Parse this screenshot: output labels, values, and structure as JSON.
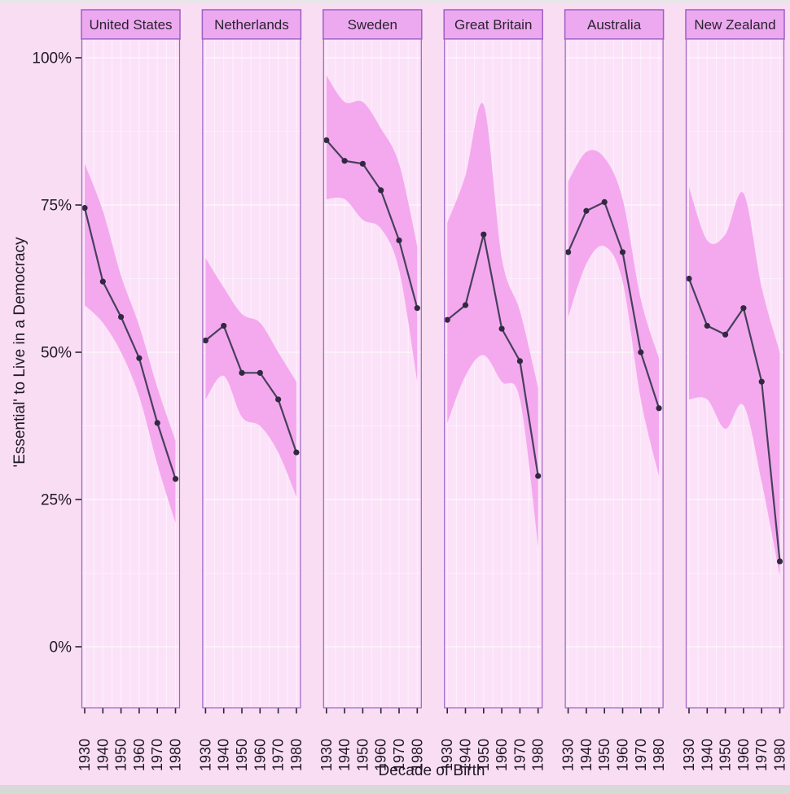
{
  "page": {
    "background_color": "#f9ddf3",
    "top_edge_color": "#e8e6e8",
    "bottom_edge_color": "#d6d9d5"
  },
  "chart_data": {
    "type": "line",
    "layout": "faceted-small-multiples-with-confidence-bands",
    "title": "",
    "xlabel": "Decade of Birth",
    "ylabel": "'Essential' to Live in a Democracy",
    "x": [
      1930,
      1940,
      1950,
      1960,
      1970,
      1980
    ],
    "x_tick_labels": [
      "1930",
      "1940",
      "1950",
      "1960",
      "1970",
      "1980"
    ],
    "y_ticks": [
      0,
      25,
      50,
      75,
      100
    ],
    "y_tick_labels": [
      "0%",
      "25%",
      "50%",
      "75%",
      "100%"
    ],
    "ylim": [
      -10.5,
      103.5
    ],
    "grid": {
      "vertical_step_years": 5,
      "horizontal_major_step_pct": 25,
      "horizontal_minor_step_pct": 12.5
    },
    "legend": "none",
    "facets": [
      {
        "name": "United States",
        "values": [
          74.5,
          62,
          56,
          49,
          38,
          28.5
        ],
        "band_upper": [
          82,
          74,
          63,
          54.5,
          44,
          35
        ],
        "band_lower": [
          58,
          55,
          50,
          42.5,
          31,
          21
        ]
      },
      {
        "name": "Netherlands",
        "values": [
          52,
          54.5,
          46.5,
          46.5,
          42,
          33
        ],
        "band_upper": [
          66,
          61,
          56.5,
          55,
          50,
          45
        ],
        "band_lower": [
          42,
          46,
          39,
          37.5,
          33,
          25.5
        ]
      },
      {
        "name": "Sweden",
        "values": [
          86,
          82.5,
          82,
          77.5,
          69,
          57.5
        ],
        "band_upper": [
          97,
          92.5,
          92.5,
          88,
          82,
          68
        ],
        "band_lower": [
          76,
          76,
          72.5,
          71,
          64,
          45
        ]
      },
      {
        "name": "Great Britain",
        "values": [
          55.5,
          58,
          70,
          54,
          48.5,
          29
        ],
        "band_upper": [
          72,
          80,
          92,
          66,
          57,
          44
        ],
        "band_lower": [
          38,
          46,
          49.5,
          45,
          42,
          17
        ]
      },
      {
        "name": "Australia",
        "values": [
          67,
          74,
          75.5,
          67,
          50,
          40.5
        ],
        "band_upper": [
          79,
          84,
          83,
          76,
          59,
          49
        ],
        "band_lower": [
          56,
          65,
          68,
          62,
          42,
          29
        ]
      },
      {
        "name": "New Zealand",
        "values": [
          62.5,
          54.5,
          53,
          57.5,
          45,
          14.5
        ],
        "band_upper": [
          78,
          69,
          70,
          77,
          61,
          50
        ],
        "band_lower": [
          42,
          42,
          37,
          41,
          28,
          12
        ]
      }
    ],
    "colors": {
      "panel_background": "#fbe2f8",
      "confidence_band": "#f4a9ee",
      "facet_header_background": "#eda9ef",
      "facet_border": "#9d5fc6",
      "trend_line": "#473f5d",
      "data_point": "#302940",
      "gridline": "#ffffff",
      "tick_text": "#1f1826"
    }
  }
}
